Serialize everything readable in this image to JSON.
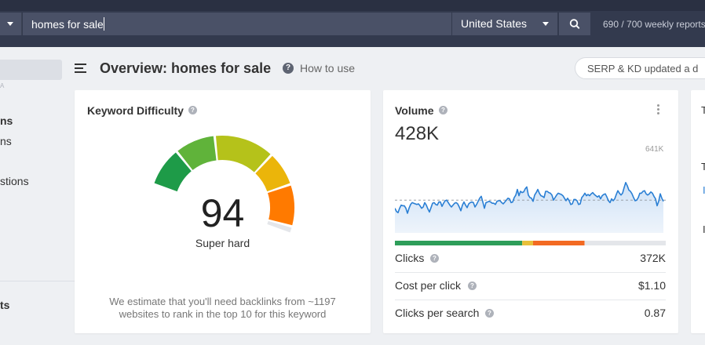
{
  "topbar": {
    "search_value": "homes for sale",
    "country": "United States",
    "reports": "690 / 700 weekly reports"
  },
  "sidebar": {
    "faint": "A",
    "items": [
      {
        "label": "ns",
        "bold": true
      },
      {
        "label": "ns",
        "bold": false
      },
      {
        "label": "stions",
        "bold": false
      },
      {
        "label": "ts",
        "bold": true
      }
    ]
  },
  "header": {
    "title": "Overview: homes for sale",
    "how_to_use": "How to use",
    "serp_status": "SERP & KD updated a d"
  },
  "kd_card": {
    "title": "Keyword Difficulty",
    "value": "94",
    "value_numeric": 94,
    "label": "Super hard",
    "note_line1": "We estimate that you'll need backlinks from ~1197",
    "note_line2": "websites to rank in the top 10 for this keyword",
    "colors": {
      "dark_green": "#1e9b48",
      "green": "#60b33a",
      "yellow_green": "#b5c21a",
      "yellow": "#ebb50a",
      "orange": "#ff7a00",
      "empty": "#e4e6ea"
    }
  },
  "volume_card": {
    "title": "Volume",
    "value": "428K",
    "max_label": "641K",
    "trend": [
      0.28,
      0.23,
      0.21,
      0.28,
      0.33,
      0.32,
      0.32,
      0.28,
      0.2,
      0.28,
      0.34,
      0.37,
      0.36,
      0.35,
      0.34,
      0.35,
      0.32,
      0.28,
      0.3,
      0.37,
      0.33,
      0.27,
      0.22,
      0.29,
      0.36,
      0.37,
      0.34,
      0.33,
      0.38,
      0.38,
      0.31,
      0.36,
      0.4,
      0.41,
      0.37,
      0.33,
      0.3,
      0.33,
      0.36,
      0.37,
      0.35,
      0.3,
      0.24,
      0.33,
      0.38,
      0.33,
      0.29,
      0.35,
      0.37,
      0.38,
      0.37,
      0.3,
      0.34,
      0.39,
      0.44,
      0.47,
      0.38,
      0.28,
      0.37,
      0.38,
      0.39,
      0.38,
      0.36,
      0.36,
      0.34,
      0.39,
      0.4,
      0.4,
      0.37,
      0.35,
      0.38,
      0.41,
      0.44,
      0.43,
      0.37,
      0.38,
      0.45,
      0.49,
      0.58,
      0.48,
      0.55,
      0.53,
      0.54,
      0.59,
      0.62,
      0.49,
      0.45,
      0.44,
      0.39,
      0.49,
      0.53,
      0.58,
      0.52,
      0.48,
      0.47,
      0.45,
      0.55,
      0.55,
      0.53,
      0.52,
      0.49,
      0.41,
      0.45,
      0.49,
      0.52,
      0.51,
      0.5,
      0.48,
      0.44,
      0.4,
      0.44,
      0.4,
      0.34,
      0.35,
      0.42,
      0.42,
      0.4,
      0.34,
      0.35,
      0.45,
      0.48,
      0.52,
      0.48,
      0.5,
      0.48,
      0.51,
      0.53,
      0.5,
      0.48,
      0.46,
      0.48,
      0.43,
      0.48,
      0.5,
      0.51,
      0.46,
      0.4,
      0.37,
      0.43,
      0.4,
      0.43,
      0.5,
      0.56,
      0.52,
      0.49,
      0.52,
      0.61,
      0.69,
      0.64,
      0.57,
      0.55,
      0.51,
      0.45,
      0.4,
      0.41,
      0.45,
      0.52,
      0.52,
      0.55,
      0.56,
      0.51,
      0.49,
      0.51,
      0.54,
      0.52,
      0.47,
      0.43,
      0.32,
      0.39,
      0.51,
      0.44,
      0.39
    ],
    "average_level": 0.41,
    "breakdown": [
      {
        "share": 0.47,
        "color": "#2e9e5a"
      },
      {
        "share": 0.04,
        "color": "#e8c03a"
      },
      {
        "share": 0.19,
        "color": "#f36a22"
      },
      {
        "share": 0.3,
        "color": "#e4e6ea"
      }
    ],
    "line_color": "#2a7fd4",
    "rows": [
      {
        "label": "Clicks",
        "value": "372K"
      },
      {
        "label": "Cost per click",
        "value": "$1.10"
      },
      {
        "label": "Clicks per search",
        "value": "0.87"
      }
    ]
  },
  "edge_card": {
    "frag1": "T",
    "frag2": "T",
    "frag3": "I",
    "frag4": "I"
  }
}
